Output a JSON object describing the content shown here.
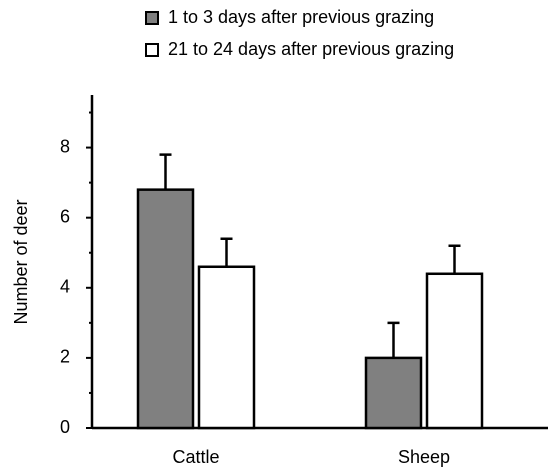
{
  "chart_data": {
    "type": "bar",
    "y_label": "Number of deer",
    "categories": [
      "Cattle",
      "Sheep"
    ],
    "series": [
      {
        "name": "1 to 3 days after previous grazing",
        "color": "#808080",
        "values": [
          6.8,
          2.0
        ],
        "errors": [
          1.0,
          1.0
        ]
      },
      {
        "name": "21 to 24 days after previous grazing",
        "color": "#ffffff",
        "values": [
          4.6,
          4.4
        ],
        "errors": [
          0.8,
          0.8
        ]
      }
    ],
    "ylim": [
      0,
      9.5
    ],
    "yticks": [
      0,
      2,
      4,
      6,
      8
    ],
    "minor_yticks": [
      1,
      3,
      5,
      7,
      9
    ],
    "grid": false,
    "legend": "top"
  }
}
